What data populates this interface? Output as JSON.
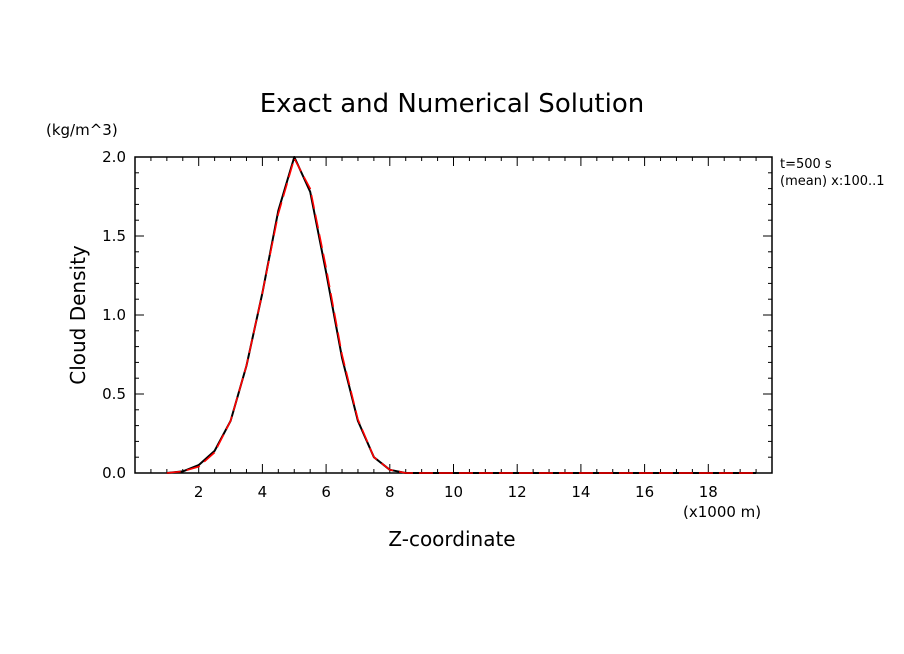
{
  "chart_data": {
    "type": "line",
    "title": "Exact and Numerical Solution",
    "xlabel": "Z-coordinate",
    "ylabel": "Cloud Density",
    "y_unit": "(kg/m^3)",
    "x_unit": "(x1000 m)",
    "annotations": [
      "t=500 s",
      "(mean) x:100..1"
    ],
    "xlim": [
      0,
      20
    ],
    "ylim": [
      0.0,
      2.0
    ],
    "x_ticks": [
      "2",
      "4",
      "6",
      "8",
      "10",
      "12",
      "14",
      "16",
      "18"
    ],
    "y_ticks": [
      "0.0",
      "0.5",
      "1.0",
      "1.5",
      "2.0"
    ],
    "grid": false,
    "series": [
      {
        "style": "solid",
        "color": "#000000",
        "x": [
          1.0,
          1.5,
          2.0,
          2.5,
          3.0,
          3.5,
          4.0,
          4.5,
          5.0,
          5.5,
          6.0,
          6.5,
          7.0,
          7.5,
          8.0,
          8.5,
          9.0,
          10.0,
          12.0,
          14.0,
          16.0,
          18.0,
          19.5
        ],
        "y": [
          0.0,
          0.01,
          0.05,
          0.14,
          0.33,
          0.68,
          1.14,
          1.66,
          2.0,
          1.78,
          1.27,
          0.73,
          0.33,
          0.1,
          0.02,
          0.0,
          0.0,
          0.0,
          0.0,
          0.0,
          0.0,
          0.0,
          0.0
        ]
      },
      {
        "style": "dashed",
        "color": "#ff0000",
        "x": [
          1.0,
          1.5,
          2.0,
          2.5,
          3.0,
          3.5,
          4.0,
          4.5,
          5.0,
          5.5,
          6.0,
          6.5,
          7.0,
          7.5,
          8.0,
          8.5,
          9.0,
          10.0,
          12.0,
          14.0,
          16.0,
          18.0,
          19.5
        ],
        "y": [
          0.0,
          0.01,
          0.04,
          0.13,
          0.33,
          0.68,
          1.14,
          1.64,
          1.99,
          1.8,
          1.3,
          0.75,
          0.34,
          0.1,
          0.02,
          0.0,
          0.0,
          0.0,
          0.0,
          0.0,
          0.0,
          0.0,
          0.0
        ]
      }
    ]
  }
}
